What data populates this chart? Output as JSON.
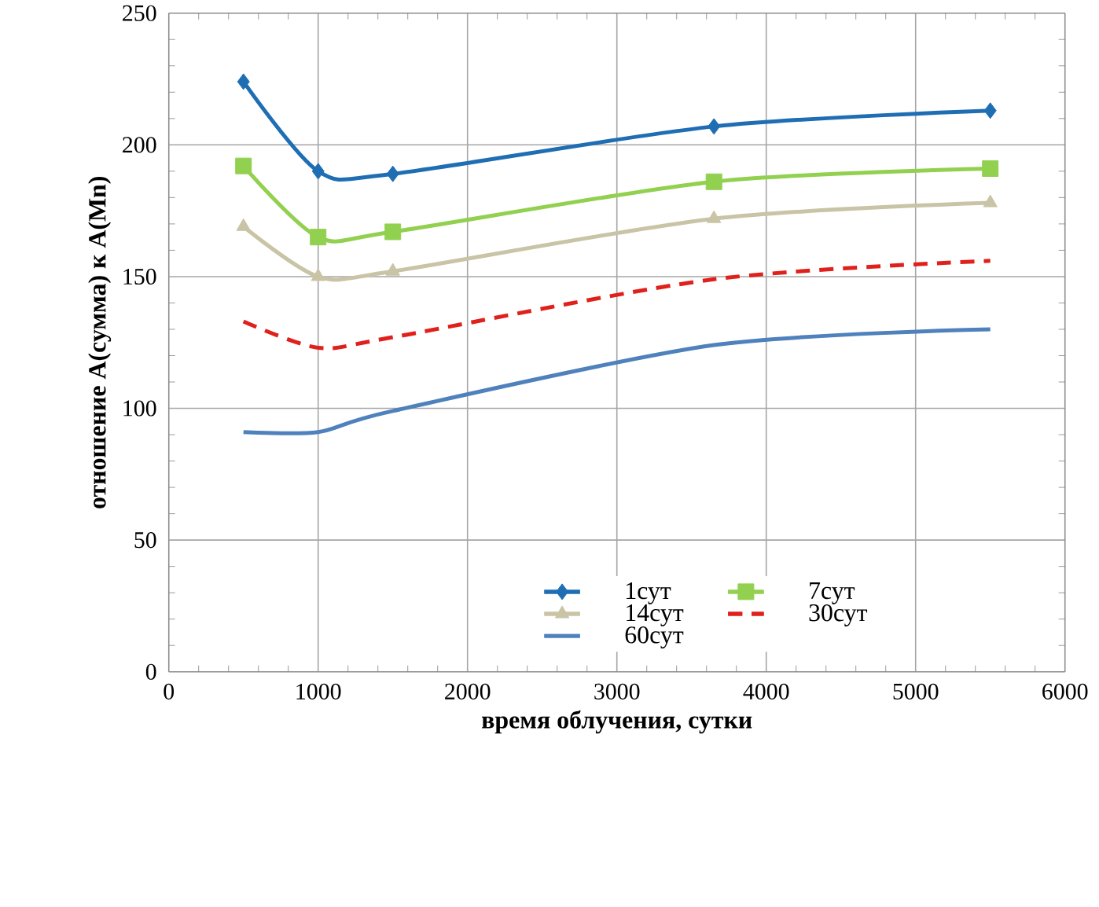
{
  "chart_data": {
    "type": "line",
    "xlabel": "время облучения, сутки",
    "ylabel": "отношение A(сумма) к A(Mn)",
    "x": [
      500,
      1000,
      1500,
      3650,
      5500
    ],
    "series": [
      {
        "name": "1сут",
        "color": "#1f6eb4",
        "marker": "diamond",
        "line_style": "solid",
        "values": [
          224,
          190,
          189,
          207,
          213
        ]
      },
      {
        "name": "7сут",
        "color": "#92d050",
        "marker": "square",
        "line_style": "solid",
        "values": [
          192,
          165,
          167,
          186,
          191
        ]
      },
      {
        "name": "14сут",
        "color": "#c9c4a6",
        "marker": "triangle",
        "line_style": "solid",
        "values": [
          169,
          150,
          152,
          172,
          178
        ]
      },
      {
        "name": "30сут",
        "color": "#e0201b",
        "marker": "none",
        "line_style": "dashed",
        "values": [
          133,
          123,
          127,
          149,
          156
        ]
      },
      {
        "name": "60сут",
        "color": "#4f81bd",
        "marker": "none",
        "line_style": "solid",
        "values": [
          91,
          91,
          99,
          124,
          130
        ]
      }
    ],
    "xlim": [
      0,
      6000
    ],
    "xticks": [
      0,
      1000,
      2000,
      3000,
      4000,
      5000,
      6000
    ],
    "ylim": [
      0,
      250
    ],
    "yticks": [
      0,
      50,
      100,
      150,
      200,
      250
    ],
    "grid": true,
    "legend": "bottom"
  }
}
